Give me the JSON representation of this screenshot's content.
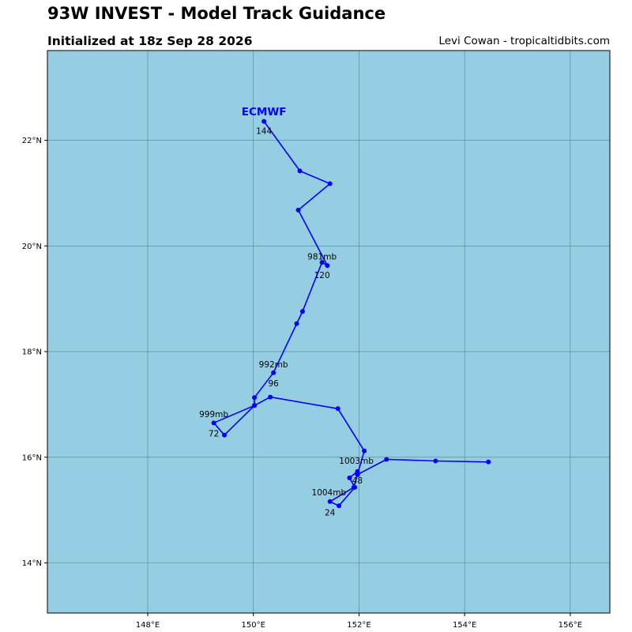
{
  "header": {
    "title": "93W INVEST - Model Track Guidance",
    "subtitle": "Initialized at 18z Sep 28 2026",
    "credit": "Levi Cowan - tropicaltidbits.com"
  },
  "colors": {
    "ocean": "#95cee3",
    "track": "#0000ff",
    "grid": "#4a7283",
    "model_label": "#0000ff"
  },
  "map": {
    "lon_range": [
      146.1,
      156.75
    ],
    "lat_range": [
      13.05,
      23.7
    ],
    "lon_ticks": [
      {
        "value": 148,
        "label": "148°E"
      },
      {
        "value": 150,
        "label": "150°E"
      },
      {
        "value": 152,
        "label": "152°E"
      },
      {
        "value": 154,
        "label": "154°E"
      },
      {
        "value": 156,
        "label": "156°E"
      }
    ],
    "lat_ticks": [
      {
        "value": 14,
        "label": "14°N"
      },
      {
        "value": 16,
        "label": "16°N"
      },
      {
        "value": 18,
        "label": "18°N"
      },
      {
        "value": 20,
        "label": "20°N"
      },
      {
        "value": 22,
        "label": "22°N"
      }
    ],
    "grid": true
  },
  "model": {
    "name": "ECMWF",
    "label_position": {
      "lon": 150.2,
      "lat": 22.55
    },
    "track": [
      {
        "lon": 154.45,
        "lat": 15.91
      },
      {
        "lon": 153.45,
        "lat": 15.93
      },
      {
        "lon": 152.52,
        "lat": 15.96
      },
      {
        "lon": 151.97,
        "lat": 15.67
      },
      {
        "lon": 151.97,
        "lat": 15.73
      },
      {
        "lon": 151.82,
        "lat": 15.61
      },
      {
        "lon": 151.92,
        "lat": 15.43
      },
      {
        "lon": 151.62,
        "lat": 15.08
      },
      {
        "lon": 151.45,
        "lat": 15.16
      },
      {
        "lon": 151.9,
        "lat": 15.43
      },
      {
        "lon": 151.97,
        "lat": 15.67
      },
      {
        "lon": 152.1,
        "lat": 16.12
      },
      {
        "lon": 151.6,
        "lat": 16.92
      },
      {
        "lon": 150.32,
        "lat": 17.14
      },
      {
        "lon": 150.02,
        "lat": 16.98
      },
      {
        "lon": 149.45,
        "lat": 16.42
      },
      {
        "lon": 149.25,
        "lat": 16.65
      },
      {
        "lon": 150.02,
        "lat": 16.98
      },
      {
        "lon": 150.02,
        "lat": 17.13
      },
      {
        "lon": 150.38,
        "lat": 17.6
      },
      {
        "lon": 150.82,
        "lat": 18.53
      },
      {
        "lon": 150.93,
        "lat": 18.76
      },
      {
        "lon": 151.3,
        "lat": 19.69
      },
      {
        "lon": 151.4,
        "lat": 19.63
      },
      {
        "lon": 150.85,
        "lat": 20.68
      },
      {
        "lon": 151.45,
        "lat": 21.18
      },
      {
        "lon": 150.88,
        "lat": 21.42
      },
      {
        "lon": 150.2,
        "lat": 22.36
      }
    ],
    "annotations": [
      {
        "text": "1003mb",
        "lon": 151.95,
        "lat": 15.88
      },
      {
        "text": "48",
        "lon": 151.97,
        "lat": 15.5
      },
      {
        "text": "1004mb",
        "lon": 151.43,
        "lat": 15.28
      },
      {
        "text": "24",
        "lon": 151.45,
        "lat": 14.9
      },
      {
        "text": "999mb",
        "lon": 149.25,
        "lat": 16.76
      },
      {
        "text": "72",
        "lon": 149.25,
        "lat": 16.39
      },
      {
        "text": "992mb",
        "lon": 150.38,
        "lat": 17.7
      },
      {
        "text": "96",
        "lon": 150.38,
        "lat": 17.34
      },
      {
        "text": "981mb",
        "lon": 151.3,
        "lat": 19.74
      },
      {
        "text": "120",
        "lon": 151.3,
        "lat": 19.39
      },
      {
        "text": "144",
        "lon": 150.2,
        "lat": 22.12
      }
    ]
  }
}
